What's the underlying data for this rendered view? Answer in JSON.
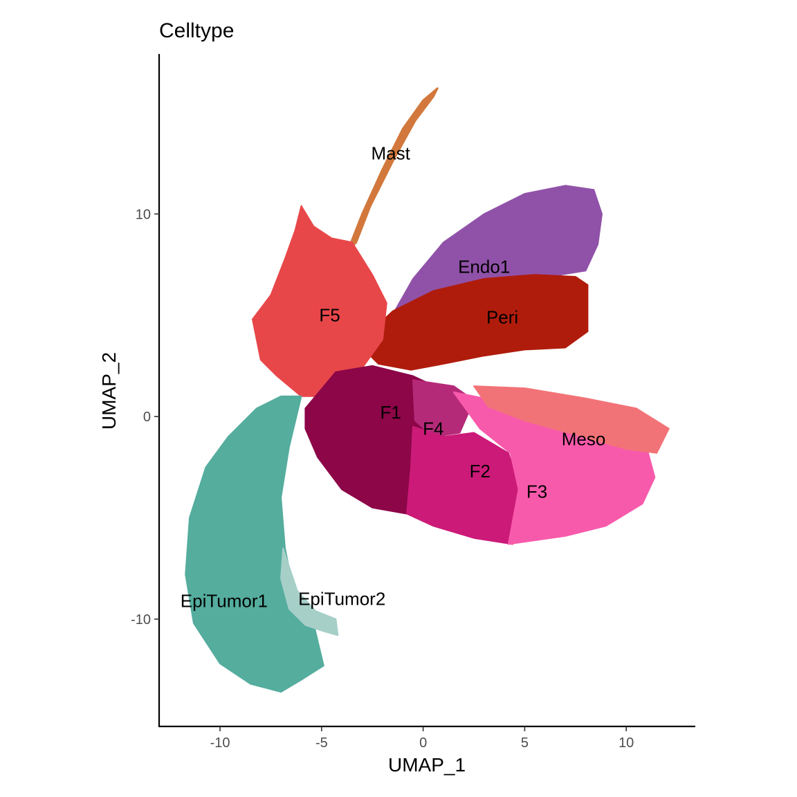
{
  "chart_data": {
    "type": "scatter",
    "title": "Celltype",
    "xlabel": "UMAP_1",
    "ylabel": "UMAP_2",
    "xlim": [
      -13.0,
      13.4
    ],
    "ylim": [
      -15.3,
      17.9
    ],
    "xticks": [
      -10,
      -5,
      0,
      5,
      10
    ],
    "yticks": [
      -10,
      0,
      10
    ],
    "xtick_labels": [
      "-10",
      "-5",
      "0",
      "5",
      "10"
    ],
    "ytick_labels": [
      "-10",
      "0",
      "10"
    ],
    "grid": false,
    "legend": "none",
    "clusters": [
      {
        "name": "Mast",
        "color": "#D2783C",
        "label_pos": [
          -1.6,
          13.0
        ],
        "outline": [
          [
            -3.7,
            8.2
          ],
          [
            -3.0,
            10.0
          ],
          [
            -2.0,
            12.2
          ],
          [
            -1.0,
            14.2
          ],
          [
            0.0,
            15.6
          ],
          [
            0.7,
            16.2
          ],
          [
            0.5,
            15.8
          ],
          [
            -0.4,
            14.6
          ],
          [
            -1.5,
            12.6
          ],
          [
            -2.6,
            10.4
          ],
          [
            -3.3,
            8.6
          ]
        ]
      },
      {
        "name": "Endo1",
        "color": "#9052A8",
        "label_pos": [
          3.0,
          7.4
        ],
        "outline": [
          [
            -1.8,
            4.5
          ],
          [
            -0.5,
            6.8
          ],
          [
            1.0,
            8.6
          ],
          [
            3.0,
            10.0
          ],
          [
            5.0,
            11.0
          ],
          [
            7.0,
            11.4
          ],
          [
            8.4,
            11.2
          ],
          [
            8.8,
            10.0
          ],
          [
            8.6,
            8.5
          ],
          [
            8.0,
            7.2
          ],
          [
            5.5,
            6.8
          ],
          [
            3.0,
            6.3
          ],
          [
            1.0,
            5.8
          ],
          [
            -0.5,
            5.0
          ]
        ]
      },
      {
        "name": "Peri",
        "color": "#B01C0C",
        "label_pos": [
          3.9,
          4.9
        ],
        "outline": [
          [
            -3.2,
            3.6
          ],
          [
            -1.5,
            5.2
          ],
          [
            0.5,
            6.2
          ],
          [
            3.0,
            6.8
          ],
          [
            5.5,
            7.0
          ],
          [
            7.5,
            6.9
          ],
          [
            8.1,
            6.5
          ],
          [
            8.1,
            4.2
          ],
          [
            7.0,
            3.4
          ],
          [
            5.0,
            3.3
          ],
          [
            3.0,
            3.0
          ],
          [
            1.0,
            2.6
          ],
          [
            -0.6,
            2.3
          ],
          [
            -2.2,
            2.6
          ]
        ]
      },
      {
        "name": "F5",
        "color": "#E8474A",
        "label_pos": [
          -4.6,
          5.0
        ],
        "outline": [
          [
            -8.4,
            4.8
          ],
          [
            -7.5,
            6.0
          ],
          [
            -6.8,
            7.8
          ],
          [
            -6.3,
            9.2
          ],
          [
            -6.0,
            10.4
          ],
          [
            -5.4,
            9.4
          ],
          [
            -4.5,
            8.8
          ],
          [
            -3.5,
            8.6
          ],
          [
            -2.5,
            7.0
          ],
          [
            -1.8,
            5.6
          ],
          [
            -2.0,
            3.8
          ],
          [
            -3.0,
            2.4
          ],
          [
            -4.8,
            1.0
          ],
          [
            -6.0,
            1.0
          ],
          [
            -7.2,
            2.0
          ],
          [
            -8.0,
            2.8
          ]
        ]
      },
      {
        "name": "EpiTumor1",
        "color": "#55AD9E",
        "label_pos": [
          -9.8,
          -9.1
        ],
        "outline": [
          [
            -6.0,
            1.0
          ],
          [
            -6.6,
            -1.5
          ],
          [
            -7.0,
            -4.0
          ],
          [
            -6.8,
            -6.5
          ],
          [
            -6.4,
            -8.5
          ],
          [
            -5.4,
            -10.2
          ],
          [
            -4.9,
            -12.3
          ],
          [
            -6.0,
            -13.0
          ],
          [
            -7.0,
            -13.6
          ],
          [
            -8.5,
            -13.2
          ],
          [
            -10.0,
            -12.2
          ],
          [
            -11.3,
            -10.2
          ],
          [
            -11.7,
            -7.8
          ],
          [
            -11.5,
            -5.0
          ],
          [
            -10.7,
            -2.5
          ],
          [
            -9.6,
            -1.0
          ],
          [
            -8.2,
            0.4
          ],
          [
            -7.0,
            1.0
          ]
        ]
      },
      {
        "name": "EpiTumor2",
        "color": "#A6CFC8",
        "label_pos": [
          -4.0,
          -9.0
        ],
        "outline": [
          [
            -6.9,
            -6.5
          ],
          [
            -6.2,
            -8.6
          ],
          [
            -5.3,
            -9.6
          ],
          [
            -4.3,
            -10.0
          ],
          [
            -4.2,
            -10.8
          ],
          [
            -4.9,
            -10.6
          ],
          [
            -5.8,
            -10.3
          ],
          [
            -6.6,
            -9.5
          ],
          [
            -7.0,
            -8.0
          ]
        ]
      },
      {
        "name": "F1",
        "color": "#8C0648",
        "label_pos": [
          -1.6,
          0.2
        ],
        "outline": [
          [
            -5.8,
            0.4
          ],
          [
            -4.3,
            2.2
          ],
          [
            -2.5,
            2.5
          ],
          [
            -0.5,
            2.0
          ],
          [
            1.0,
            1.3
          ],
          [
            2.0,
            0.5
          ],
          [
            1.0,
            -1.0
          ],
          [
            -0.5,
            -3.0
          ],
          [
            -0.8,
            -4.8
          ],
          [
            -2.5,
            -4.5
          ],
          [
            -4.0,
            -3.6
          ],
          [
            -5.2,
            -2.0
          ],
          [
            -5.8,
            -0.6
          ]
        ]
      },
      {
        "name": "F4",
        "color": "#B52A78",
        "label_pos": [
          0.5,
          -0.6
        ],
        "outline": [
          [
            -0.5,
            1.8
          ],
          [
            1.5,
            1.5
          ],
          [
            2.5,
            0.8
          ],
          [
            1.8,
            -0.8
          ],
          [
            0.5,
            -1.0
          ],
          [
            -0.4,
            -0.2
          ]
        ]
      },
      {
        "name": "F2",
        "color": "#CC1A78",
        "label_pos": [
          2.8,
          -2.7
        ],
        "outline": [
          [
            -0.5,
            -0.5
          ],
          [
            1.0,
            -1.0
          ],
          [
            2.5,
            -0.8
          ],
          [
            4.2,
            -1.8
          ],
          [
            4.8,
            -3.6
          ],
          [
            4.4,
            -6.3
          ],
          [
            2.5,
            -6.0
          ],
          [
            0.5,
            -5.4
          ],
          [
            -0.8,
            -4.8
          ],
          [
            -0.6,
            -2.5
          ]
        ]
      },
      {
        "name": "F3",
        "color": "#F85AAB",
        "label_pos": [
          5.6,
          -3.7
        ],
        "outline": [
          [
            1.5,
            1.2
          ],
          [
            4.0,
            0.7
          ],
          [
            7.0,
            0.2
          ],
          [
            9.5,
            -0.6
          ],
          [
            11.0,
            -1.5
          ],
          [
            11.4,
            -3.0
          ],
          [
            10.8,
            -4.3
          ],
          [
            9.0,
            -5.4
          ],
          [
            7.0,
            -5.9
          ],
          [
            4.2,
            -6.3
          ],
          [
            4.7,
            -3.6
          ],
          [
            4.3,
            -1.8
          ],
          [
            2.8,
            -0.6
          ]
        ]
      },
      {
        "name": "Meso",
        "color": "#F27377",
        "label_pos": [
          7.9,
          -1.1
        ],
        "outline": [
          [
            2.5,
            1.5
          ],
          [
            5.0,
            1.4
          ],
          [
            8.0,
            0.9
          ],
          [
            10.5,
            0.4
          ],
          [
            12.1,
            -0.6
          ],
          [
            11.5,
            -1.8
          ],
          [
            10.0,
            -1.6
          ],
          [
            7.5,
            -0.9
          ],
          [
            5.0,
            -0.2
          ],
          [
            3.2,
            0.5
          ]
        ]
      }
    ]
  }
}
